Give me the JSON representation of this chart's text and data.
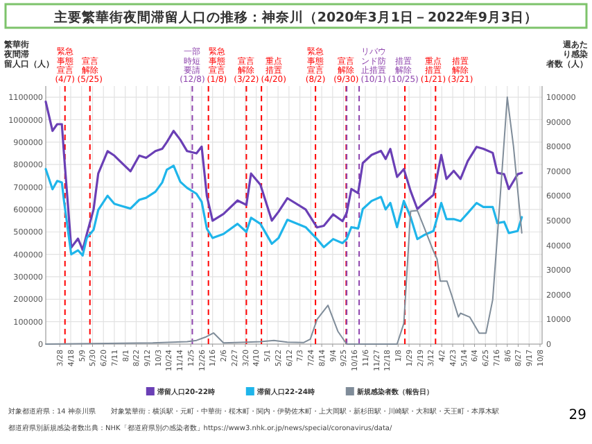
{
  "chart_data": {
    "type": "line",
    "title": "主要繁華街夜間滞留人口の推移：神奈川（2020年3月1日－2022年9月3日）",
    "ylabel": "繁華街夜間滞留人口（人）",
    "y2label": "週あたり感染者数（人）",
    "legend": "bottom",
    "grid": true,
    "xlim": [
      "2020-03-01",
      "2022-10-12"
    ],
    "xticks": [
      {
        "value": "2020-03-28",
        "label": "3/28"
      },
      {
        "value": "2020-04-18",
        "label": "4/18"
      },
      {
        "value": "2020-05-09",
        "label": "5/9"
      },
      {
        "value": "2020-05-30",
        "label": "5/30"
      },
      {
        "value": "2020-06-20",
        "label": "6/20"
      },
      {
        "value": "2020-07-11",
        "label": "7/11"
      },
      {
        "value": "2020-08-01",
        "label": "8/1"
      },
      {
        "value": "2020-08-22",
        "label": "8/22"
      },
      {
        "value": "2020-09-12",
        "label": "9/12"
      },
      {
        "value": "2020-10-03",
        "label": "10/3"
      },
      {
        "value": "2020-10-24",
        "label": "10/24"
      },
      {
        "value": "2020-11-14",
        "label": "11/14"
      },
      {
        "value": "2020-12-05",
        "label": "12/5"
      },
      {
        "value": "2020-12-26",
        "label": "12/26"
      },
      {
        "value": "2021-01-16",
        "label": "1/16"
      },
      {
        "value": "2021-02-06",
        "label": "2/6"
      },
      {
        "value": "2021-02-27",
        "label": "2/27"
      },
      {
        "value": "2021-03-20",
        "label": "3/20"
      },
      {
        "value": "2021-04-10",
        "label": "4/10"
      },
      {
        "value": "2021-05-01",
        "label": "5/1"
      },
      {
        "value": "2021-05-22",
        "label": "5/22"
      },
      {
        "value": "2021-06-12",
        "label": "6/12"
      },
      {
        "value": "2021-07-03",
        "label": "7/3"
      },
      {
        "value": "2021-07-24",
        "label": "7/24"
      },
      {
        "value": "2021-08-14",
        "label": "8/14"
      },
      {
        "value": "2021-09-04",
        "label": "9/4"
      },
      {
        "value": "2021-09-25",
        "label": "9/25"
      },
      {
        "value": "2021-10-16",
        "label": "10/16"
      },
      {
        "value": "2021-11-06",
        "label": "11/6"
      },
      {
        "value": "2021-11-27",
        "label": "11/27"
      },
      {
        "value": "2021-12-18",
        "label": "12/18"
      },
      {
        "value": "2022-01-08",
        "label": "1/8"
      },
      {
        "value": "2022-01-29",
        "label": "1/29"
      },
      {
        "value": "2022-02-19",
        "label": "2/19"
      },
      {
        "value": "2022-03-12",
        "label": "3/12"
      },
      {
        "value": "2022-04-02",
        "label": "4/2"
      },
      {
        "value": "2022-04-23",
        "label": "4/23"
      },
      {
        "value": "2022-05-14",
        "label": "5/14"
      },
      {
        "value": "2022-06-04",
        "label": "6/4"
      },
      {
        "value": "2022-06-25",
        "label": "6/25"
      },
      {
        "value": "2022-07-16",
        "label": "7/16"
      },
      {
        "value": "2022-08-06",
        "label": "8/6"
      },
      {
        "value": "2022-08-27",
        "label": "8/27"
      },
      {
        "value": "2022-09-17",
        "label": "9/17"
      },
      {
        "value": "2022-10-08",
        "label": "10/8"
      }
    ],
    "ylim": [
      0,
      1150000
    ],
    "yticks": [
      0,
      100000,
      200000,
      300000,
      400000,
      500000,
      600000,
      700000,
      800000,
      900000,
      1000000,
      1100000
    ],
    "y2lim": [
      0,
      104500
    ],
    "y2ticks": [
      0,
      10000,
      20000,
      30000,
      40000,
      50000,
      60000,
      70000,
      80000,
      90000,
      100000
    ],
    "series": [
      {
        "name": "滞留人口20-22時",
        "color": "#6a3fb5",
        "x": [
          "2020-03-01",
          "2020-03-14",
          "2020-03-23",
          "2020-04-01",
          "2020-04-05",
          "2020-04-19",
          "2020-05-02",
          "2020-05-11",
          "2020-05-19",
          "2020-06-01",
          "2020-06-10",
          "2020-06-28",
          "2020-07-11",
          "2020-07-24",
          "2020-08-11",
          "2020-08-28",
          "2020-09-10",
          "2020-09-28",
          "2020-10-11",
          "2020-10-20",
          "2020-11-02",
          "2020-11-15",
          "2020-11-28",
          "2020-12-16",
          "2020-12-26",
          "2021-01-05",
          "2021-01-16",
          "2021-02-06",
          "2021-03-05",
          "2021-03-22",
          "2021-03-31",
          "2021-04-18",
          "2021-05-10",
          "2021-05-23",
          "2021-06-09",
          "2021-07-14",
          "2021-08-05",
          "2021-08-18",
          "2021-09-05",
          "2021-09-23",
          "2021-10-01",
          "2021-10-10",
          "2021-10-23",
          "2021-11-01",
          "2021-11-18",
          "2021-12-06",
          "2021-12-15",
          "2021-12-24",
          "2022-01-06",
          "2022-01-19",
          "2022-02-01",
          "2022-02-14",
          "2022-02-27",
          "2022-03-17",
          "2022-04-01",
          "2022-04-11",
          "2022-04-25",
          "2022-05-08",
          "2022-05-22",
          "2022-06-08",
          "2022-06-21",
          "2022-07-09",
          "2022-07-18",
          "2022-07-31",
          "2022-08-09",
          "2022-08-26",
          "2022-09-03"
        ],
        "values": [
          1080000,
          950000,
          980000,
          980000,
          850000,
          430000,
          470000,
          420000,
          490000,
          600000,
          760000,
          860000,
          840000,
          810000,
          770000,
          840000,
          830000,
          860000,
          870000,
          900000,
          950000,
          910000,
          860000,
          850000,
          880000,
          660000,
          550000,
          580000,
          640000,
          620000,
          760000,
          710000,
          550000,
          590000,
          650000,
          600000,
          520000,
          527000,
          578000,
          548000,
          584000,
          691000,
          673000,
          807000,
          843000,
          861000,
          825000,
          870000,
          745000,
          780000,
          682000,
          602000,
          629000,
          665000,
          843000,
          736000,
          772000,
          736000,
          816000,
          879000,
          870000,
          852000,
          763000,
          757000,
          691000,
          757000,
          763000
        ]
      },
      {
        "name": "滞留人口22-24時",
        "color": "#1fb5ea",
        "x": [
          "2020-03-01",
          "2020-03-14",
          "2020-03-23",
          "2020-04-01",
          "2020-04-05",
          "2020-04-19",
          "2020-05-02",
          "2020-05-11",
          "2020-05-19",
          "2020-06-01",
          "2020-06-10",
          "2020-06-28",
          "2020-07-11",
          "2020-07-24",
          "2020-08-11",
          "2020-08-28",
          "2020-09-10",
          "2020-09-28",
          "2020-10-11",
          "2020-10-20",
          "2020-11-02",
          "2020-11-15",
          "2020-11-28",
          "2020-12-16",
          "2020-12-26",
          "2021-01-05",
          "2021-01-16",
          "2021-02-06",
          "2021-03-05",
          "2021-03-22",
          "2021-03-31",
          "2021-04-18",
          "2021-05-10",
          "2021-05-23",
          "2021-06-09",
          "2021-07-14",
          "2021-08-05",
          "2021-08-18",
          "2021-09-05",
          "2021-09-23",
          "2021-10-01",
          "2021-10-10",
          "2021-10-23",
          "2021-11-01",
          "2021-11-18",
          "2021-12-06",
          "2021-12-15",
          "2021-12-24",
          "2022-01-06",
          "2022-01-19",
          "2022-02-01",
          "2022-02-14",
          "2022-02-27",
          "2022-03-17",
          "2022-04-01",
          "2022-04-11",
          "2022-04-25",
          "2022-05-08",
          "2022-05-22",
          "2022-06-08",
          "2022-06-21",
          "2022-07-09",
          "2022-07-18",
          "2022-07-31",
          "2022-08-09",
          "2022-08-26",
          "2022-09-03"
        ],
        "values": [
          780000,
          690000,
          727000,
          720000,
          640000,
          400000,
          418000,
          395000,
          473000,
          509000,
          598000,
          661000,
          625000,
          616000,
          604000,
          643000,
          652000,
          679000,
          720000,
          777000,
          795000,
          723000,
          696000,
          670000,
          634000,
          514000,
          473000,
          491000,
          536000,
          500000,
          563000,
          536000,
          447000,
          473000,
          554000,
          521000,
          468000,
          432000,
          468000,
          450000,
          468000,
          521000,
          515000,
          602000,
          638000,
          656000,
          600000,
          629000,
          521000,
          638000,
          566000,
          468000,
          486000,
          504000,
          629000,
          557000,
          557000,
          548000,
          584000,
          629000,
          611000,
          611000,
          539000,
          545000,
          495000,
          504000,
          566000
        ]
      },
      {
        "name": "新規感染者数（報告日）",
        "color": "#7f8c99",
        "axis": "y2",
        "x": [
          "2020-03-01",
          "2020-09-23",
          "2020-11-28",
          "2020-12-16",
          "2021-01-02",
          "2021-01-18",
          "2021-02-06",
          "2021-03-22",
          "2021-04-18",
          "2021-05-14",
          "2021-06-09",
          "2021-07-10",
          "2021-07-23",
          "2021-08-05",
          "2021-08-26",
          "2021-09-14",
          "2021-10-01",
          "2022-01-06",
          "2022-01-19",
          "2022-02-01",
          "2022-02-14",
          "2022-02-27",
          "2022-03-17",
          "2022-03-24",
          "2022-03-30",
          "2022-04-12",
          "2022-04-21",
          "2022-05-04",
          "2022-05-08",
          "2022-05-26",
          "2022-06-13",
          "2022-06-26",
          "2022-07-09",
          "2022-07-22",
          "2022-08-06",
          "2022-08-18",
          "2022-09-03"
        ],
        "values": [
          0,
          500,
          1000,
          1500,
          2800,
          4500,
          500,
          800,
          1000,
          1500,
          800,
          600,
          2000,
          10000,
          15700,
          5200,
          0,
          0,
          8400,
          53800,
          54100,
          47300,
          37600,
          34400,
          25500,
          25500,
          19800,
          11000,
          12500,
          10900,
          4400,
          4400,
          18000,
          55500,
          100000,
          80000,
          45000
        ]
      }
    ],
    "ref_lines": [
      {
        "axis": "x",
        "value": "2020-04-07",
        "label": "緊急事態宣言(4/7)",
        "color": "#ff0000",
        "line_style": "dashed"
      },
      {
        "axis": "x",
        "value": "2020-05-25",
        "label": "宣言解除(5/25)",
        "color": "#ff0000",
        "line_style": "dashed"
      },
      {
        "axis": "x",
        "value": "2020-12-08",
        "label": "一部時短要請(12/8)",
        "color": "#8e44ad",
        "line_style": "dashed"
      },
      {
        "axis": "x",
        "value": "2021-01-08",
        "label": "緊急事態宣言(1/8)",
        "color": "#ff0000",
        "line_style": "dashed"
      },
      {
        "axis": "x",
        "value": "2021-03-22",
        "label": "宣言解除(3/22)",
        "color": "#ff0000",
        "line_style": "dashed"
      },
      {
        "axis": "x",
        "value": "2021-04-20",
        "label": "重点措置(4/20)",
        "color": "#ff0000",
        "line_style": "dashed"
      },
      {
        "axis": "x",
        "value": "2021-08-02",
        "label": "緊急事態宣言(8/2)",
        "color": "#ff0000",
        "line_style": "dashed"
      },
      {
        "axis": "x",
        "value": "2021-09-30",
        "label": "宣言解除(9/30)",
        "color": "#ff0000",
        "line_style": "dashed"
      },
      {
        "axis": "x",
        "value": "2021-10-01",
        "label": "リバウンド防止措置(10/1)",
        "color": "#8e44ad",
        "line_style": "dashed"
      },
      {
        "axis": "x",
        "value": "2021-10-25",
        "label": "措置解除(10/25)",
        "color": "#8e44ad",
        "line_style": "dashed"
      },
      {
        "axis": "x",
        "value": "2022-01-21",
        "label": "重点措置(1/21)",
        "color": "#ff0000",
        "line_style": "dashed"
      },
      {
        "axis": "x",
        "value": "2022-03-21",
        "label": "措置解除(3/21)",
        "color": "#ff0000",
        "line_style": "dashed"
      }
    ],
    "annotations": [
      "対象都道府県：14 神奈川県",
      "対象繁華街：横浜駅・元町・中華街・桜木町・関内・伊勢佐木町・上大岡駅・新杉田駅・川崎駅・大和駅・天王町・本厚木駅",
      "都道府県別新規感染者数出典：NHK「都道府県別の感染者数」https://www3.nhk.or.jp/news/special/coronavirus/data/",
      "29"
    ]
  }
}
